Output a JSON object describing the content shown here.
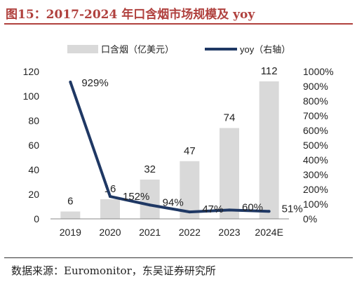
{
  "figure": {
    "title": "图15：2017-2024 年口含烟市场规模及 yoy",
    "source": "数据来源：Euromonitor，东吴证券研究所"
  },
  "colors": {
    "title": "#b0413e",
    "bar": "#d9d9d9",
    "line": "#1f3864",
    "text": "#222222"
  },
  "chart_data": {
    "type": "bar",
    "categories": [
      "2019",
      "2020",
      "2021",
      "2022",
      "2023",
      "2024E"
    ],
    "series": [
      {
        "name": "口含烟（亿美元）",
        "type": "bar",
        "axis": "left",
        "values": [
          6,
          16,
          32,
          47,
          74,
          112
        ],
        "labels": [
          "6",
          "16",
          "32",
          "47",
          "74",
          "112"
        ]
      },
      {
        "name": "yoy（右轴）",
        "type": "line",
        "axis": "right",
        "values": [
          929,
          152,
          94,
          47,
          60,
          51
        ],
        "labels": [
          "929%",
          "152%",
          "94%",
          "47%",
          "60%",
          "51%"
        ]
      }
    ],
    "y_left": {
      "min": 0,
      "max": 120,
      "ticks": [
        "0",
        "20",
        "40",
        "60",
        "80",
        "100",
        "120"
      ]
    },
    "y_right": {
      "min": 0,
      "max": 1000,
      "ticks": [
        "0%",
        "100%",
        "200%",
        "300%",
        "400%",
        "500%",
        "600%",
        "700%",
        "800%",
        "900%",
        "1000%"
      ]
    },
    "legend_position": "top",
    "grid": false
  }
}
